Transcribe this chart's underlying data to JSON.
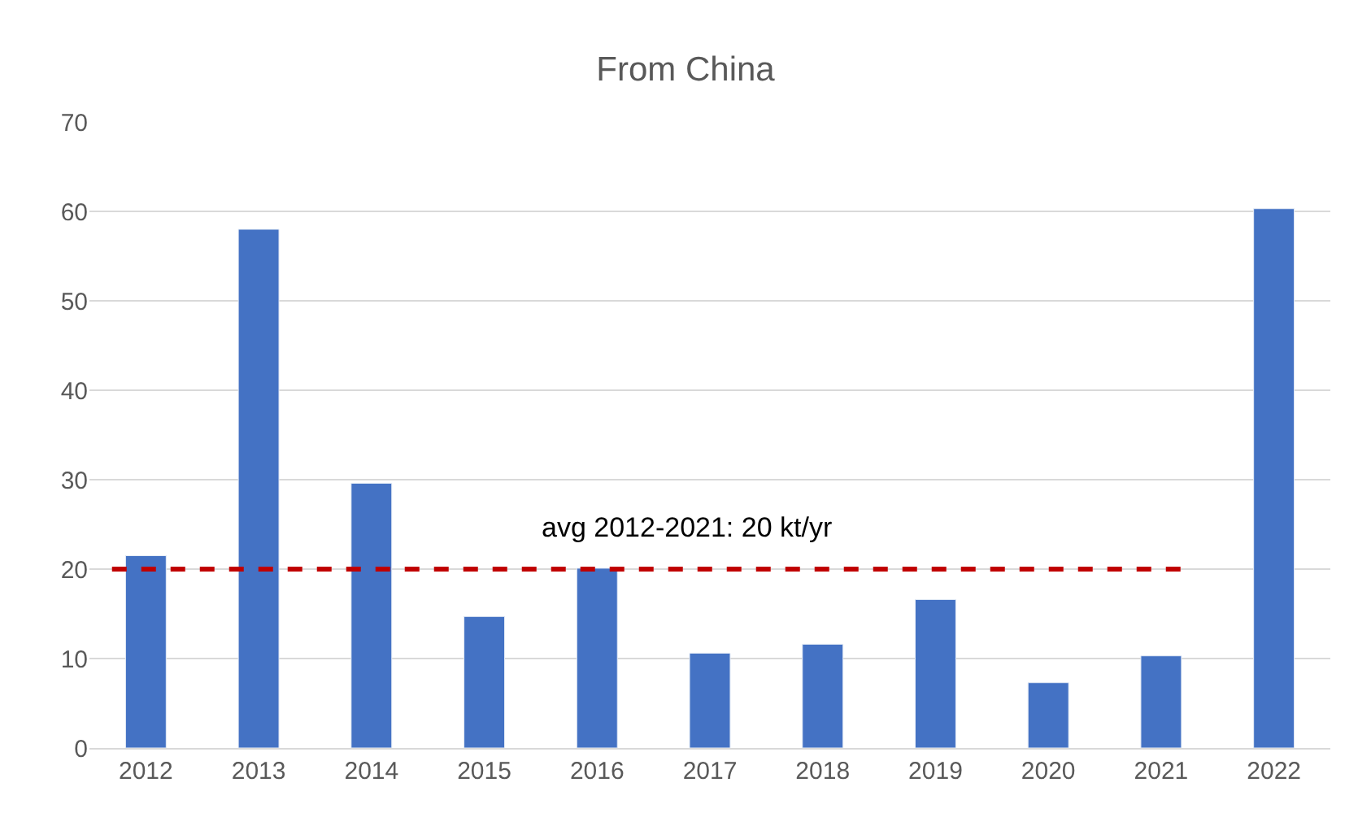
{
  "chart_data": {
    "type": "bar",
    "title": "From China",
    "categories": [
      "2012",
      "2013",
      "2014",
      "2015",
      "2016",
      "2017",
      "2018",
      "2019",
      "2020",
      "2021",
      "2022"
    ],
    "values": [
      21.5,
      58,
      29.6,
      14.7,
      20.1,
      10.6,
      11.6,
      16.6,
      7.3,
      10.3,
      60.3
    ],
    "color": "#4472c4",
    "ylim": [
      0,
      70
    ],
    "yticks": [
      0,
      10,
      20,
      30,
      40,
      50,
      60,
      70
    ],
    "grid": "y",
    "ref_lines": [
      {
        "axis": "y",
        "value": 20,
        "label": "avg 2012-2021: 20 kt/yr",
        "color": "#c00000",
        "line_style": "dashed"
      }
    ]
  }
}
